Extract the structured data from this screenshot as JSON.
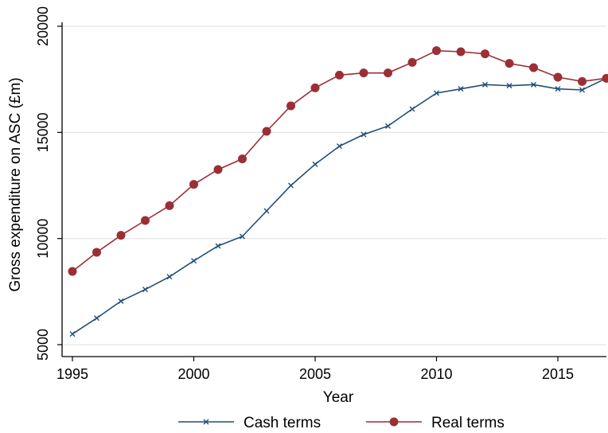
{
  "chart_data": {
    "type": "line",
    "xlabel": "Year",
    "ylabel": "Gross expenditure on ASC (£m)",
    "xlim": [
      1995,
      2017
    ],
    "ylim": [
      5000,
      20000
    ],
    "xticks": [
      "1995",
      "2000",
      "2005",
      "2010",
      "2015"
    ],
    "yticks": [
      "5000",
      "10000",
      "15000",
      "20000"
    ],
    "grid": "horizontal",
    "legend_position": "bottom",
    "x": [
      1995,
      1996,
      1997,
      1998,
      1999,
      2000,
      2001,
      2002,
      2003,
      2004,
      2005,
      2006,
      2007,
      2008,
      2009,
      2010,
      2011,
      2012,
      2013,
      2014,
      2015,
      2016,
      2017
    ],
    "series": [
      {
        "name": "Cash terms",
        "color": "#1f4e79",
        "marker": "x",
        "values": [
          5500,
          6250,
          7050,
          7600,
          8200,
          8950,
          9650,
          10100,
          11300,
          12500,
          13500,
          14350,
          14900,
          15300,
          16100,
          16850,
          17050,
          17250,
          17200,
          17250,
          17050,
          17000,
          17550
        ]
      },
      {
        "name": "Real terms",
        "color": "#9b2f35",
        "marker": "circle",
        "values": [
          8450,
          9350,
          10150,
          10850,
          11550,
          12550,
          13250,
          13750,
          15050,
          16250,
          17100,
          17700,
          17800,
          17800,
          18300,
          18850,
          18800,
          18700,
          18250,
          18050,
          17600,
          17400,
          17550
        ]
      }
    ]
  }
}
